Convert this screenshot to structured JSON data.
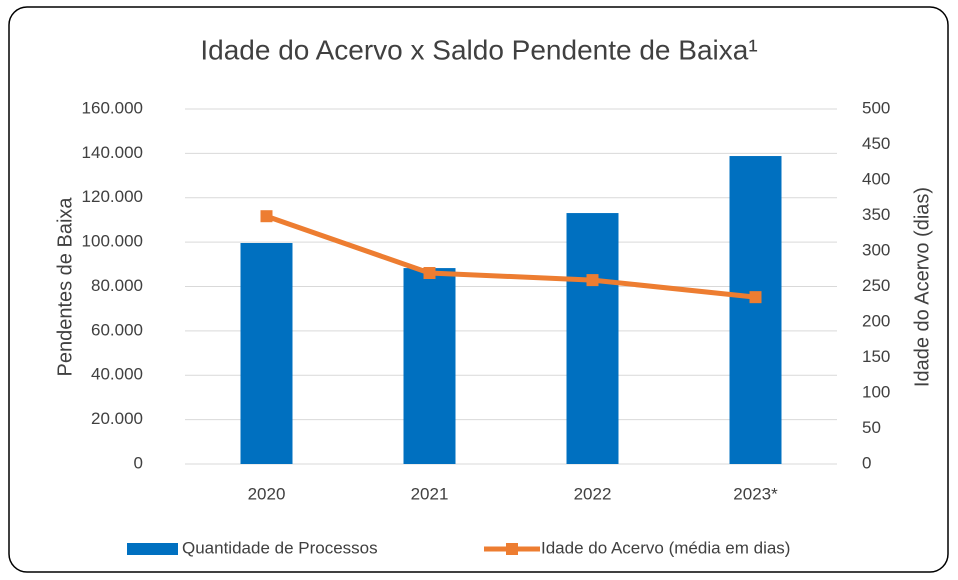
{
  "chart_data": {
    "type": "bar_line",
    "title": "Idade do Acervo x Saldo Pendente de Baixa¹",
    "categories": [
      "2020",
      "2021",
      "2022",
      "2023*"
    ],
    "series": [
      {
        "name": "Quantidade de Processos",
        "type": "bar",
        "color": "#0070c0",
        "values": [
          99600,
          88300,
          113100,
          138800
        ]
      },
      {
        "name": "Idade do Acervo (média em dias)",
        "type": "line",
        "axis": "y2",
        "color": "#ed7d31",
        "values": [
          349,
          269,
          259,
          235
        ]
      }
    ],
    "ylabel": "Pendentes de Baixa",
    "y2label": "Idade do Acervo (dias)",
    "ylim": [
      0,
      160000
    ],
    "yticks": [
      0,
      {
        "value": 20000,
        "label": "20.000"
      },
      {
        "value": 40000,
        "label": "40.000"
      },
      {
        "value": 60000,
        "label": "60.000"
      },
      {
        "value": 80000,
        "label": "80.000"
      },
      {
        "value": 100000,
        "label": "100.000"
      },
      {
        "value": 120000,
        "label": "120.000"
      },
      {
        "value": 140000,
        "label": "140.000"
      },
      {
        "value": 160000,
        "label": "160.000"
      }
    ],
    "y2lim": [
      0,
      500
    ],
    "y2ticks": [
      0,
      50,
      100,
      150,
      200,
      250,
      300,
      350,
      400,
      450,
      500
    ],
    "grid": true,
    "legend": "bottom"
  }
}
